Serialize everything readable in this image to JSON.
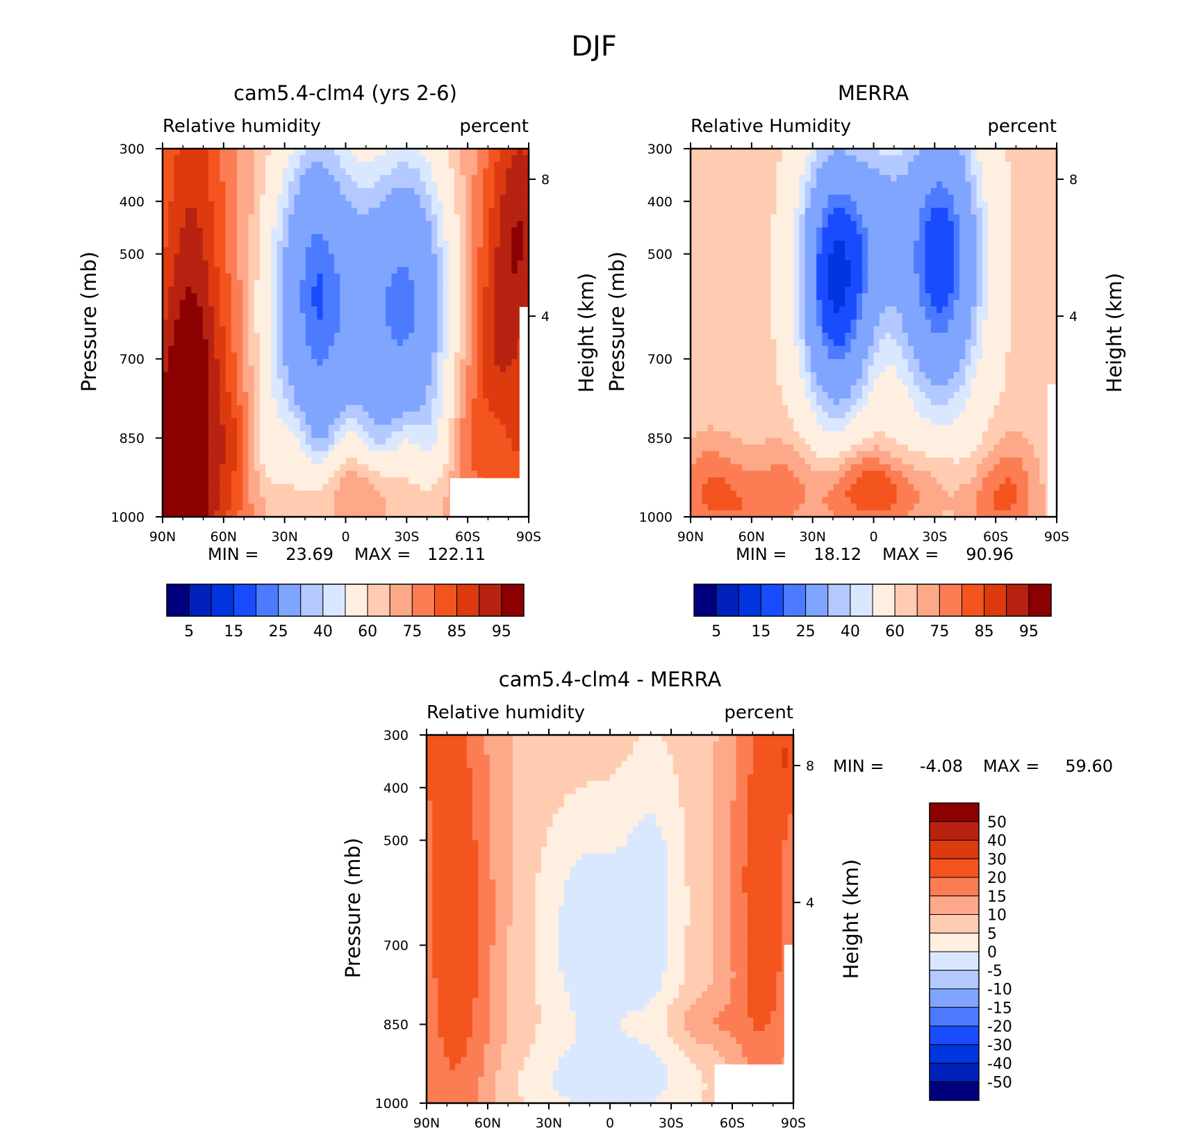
{
  "figure_title": "DJF",
  "chart_data": [
    {
      "type": "heatmap",
      "title": "cam5.4-clm4 (yrs 2-6)",
      "field_label": "Relative humidity",
      "units_label": "percent",
      "ylabel": "Pressure (mb)",
      "ylabel_right": "Height (km)",
      "x_ticks": [
        "90N",
        "60N",
        "30N",
        "0",
        "30S",
        "60S",
        "90S"
      ],
      "y_ticks": [
        "300",
        "400",
        "500",
        "700",
        "850",
        "1000"
      ],
      "y_right_ticks": [
        "8",
        "4"
      ],
      "min_label": "MIN =",
      "min_value": "23.69",
      "max_label": "MAX =",
      "max_value": "122.11",
      "ylim": [
        1000,
        300
      ],
      "colorbar_labels": [
        "5",
        "15",
        "25",
        "40",
        "60",
        "75",
        "85",
        "95"
      ]
    },
    {
      "type": "heatmap",
      "title": "MERRA",
      "field_label": "Relative Humidity",
      "units_label": "percent",
      "ylabel": "Pressure (mb)",
      "ylabel_right": "Height (km)",
      "x_ticks": [
        "90N",
        "60N",
        "30N",
        "0",
        "30S",
        "60S",
        "90S"
      ],
      "y_ticks": [
        "300",
        "400",
        "500",
        "700",
        "850",
        "1000"
      ],
      "y_right_ticks": [
        "8",
        "4"
      ],
      "min_label": "MIN =",
      "min_value": "18.12",
      "max_label": "MAX =",
      "max_value": "90.96",
      "ylim": [
        1000,
        300
      ],
      "colorbar_labels": [
        "5",
        "15",
        "25",
        "40",
        "60",
        "75",
        "85",
        "95"
      ]
    },
    {
      "type": "heatmap",
      "title": "cam5.4-clm4 - MERRA",
      "field_label": "Relative humidity",
      "units_label": "percent",
      "ylabel": "Pressure (mb)",
      "ylabel_right": "Height (km)",
      "x_ticks": [
        "90N",
        "60N",
        "30N",
        "0",
        "30S",
        "60S",
        "90S"
      ],
      "y_ticks": [
        "300",
        "400",
        "500",
        "700",
        "850",
        "1000"
      ],
      "y_right_ticks": [
        "8",
        "4"
      ],
      "min_label": "MIN =",
      "min_value": "-4.08",
      "max_label": "MAX =",
      "max_value": "59.60",
      "ylim": [
        1000,
        300
      ],
      "colorbar_labels": [
        "50",
        "40",
        "30",
        "20",
        "15",
        "10",
        "5",
        "0",
        "-5",
        "-10",
        "-15",
        "-20",
        "-30",
        "-40",
        "-50"
      ]
    }
  ],
  "colors": {
    "seq": [
      "#00007f",
      "#0022bb",
      "#0035e0",
      "#1a4cff",
      "#4c7bff",
      "#80a5ff",
      "#b3c9ff",
      "#d9e8ff",
      "#ffefe0",
      "#ffccb2",
      "#fda889",
      "#fc7d54",
      "#f4541e",
      "#dd3a10",
      "#b72310",
      "#8b0000"
    ],
    "diff": [
      "#8b0000",
      "#b72310",
      "#dd3a10",
      "#f4541e",
      "#fc7d54",
      "#fda889",
      "#ffccb2",
      "#ffefe0",
      "#d9e8ff",
      "#b3c9ff",
      "#80a5ff",
      "#4c7bff",
      "#1a4cff",
      "#0035e0",
      "#0022bb",
      "#00007f"
    ]
  }
}
